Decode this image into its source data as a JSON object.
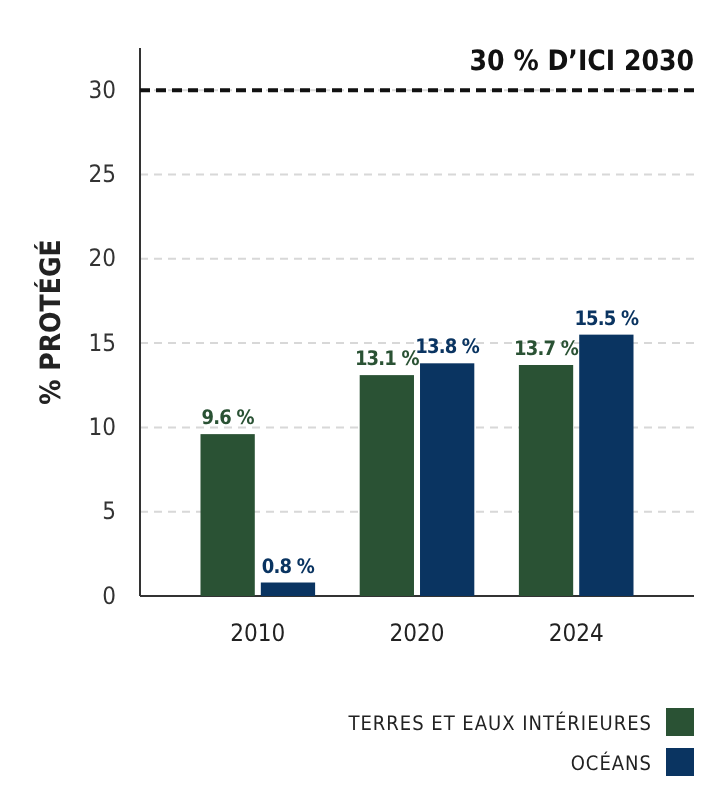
{
  "chart_data": {
    "type": "bar",
    "ylabel": "% PROTÉGÉ",
    "categories": [
      "2010",
      "2020",
      "2024"
    ],
    "series": [
      {
        "name": "TERRES ET EAUX INTÉRIEURES",
        "color": "#2a5234",
        "values": [
          9.6,
          13.1,
          13.7
        ],
        "value_labels": [
          "9.6 %",
          "13.1 %",
          "13.7 %"
        ]
      },
      {
        "name": "OCÉANS",
        "color": "#0a3461",
        "values": [
          0.8,
          13.8,
          15.5
        ],
        "value_labels": [
          "0.8 %",
          "13.8 %",
          "15.5 %"
        ]
      }
    ],
    "ylim": [
      0,
      32.5
    ],
    "yticks": [
      0,
      5,
      10,
      15,
      20,
      25,
      30
    ],
    "grid": "y",
    "legend": "bottom right",
    "ref_lines": [
      {
        "axis": "y",
        "value": 30,
        "label": "30 % D’ICI 2030",
        "color": "#111111",
        "line_style": "dashed"
      }
    ]
  }
}
